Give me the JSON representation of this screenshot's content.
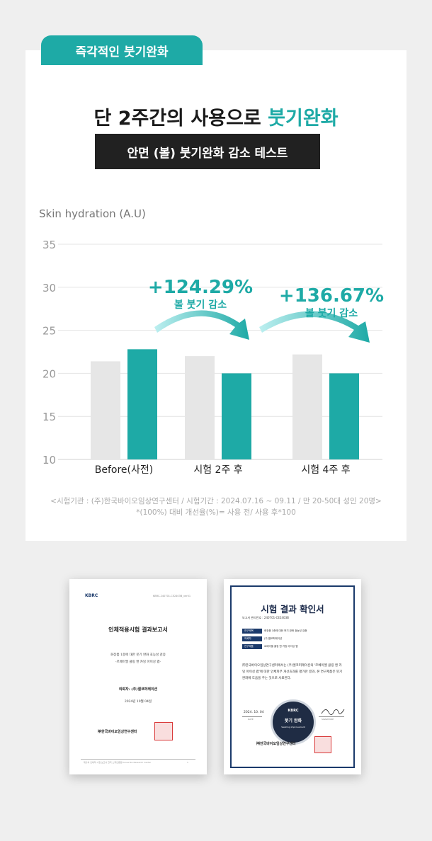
{
  "badge": "즉각적인 붓기완화",
  "headline": {
    "prefix": "단 2주간의 사용으로 ",
    "accent": "붓기완화"
  },
  "subtitle": "안면 (볼) 붓기완화 감소 테스트",
  "chart_data": {
    "type": "bar",
    "ylabel": "Skin  hydration (A.U)",
    "ylim": [
      10,
      35
    ],
    "yticks": [
      "35",
      "30",
      "25",
      "20",
      "15",
      "10"
    ],
    "categories": [
      "Before(사전)",
      "시험 2주 후",
      "시험 4주 후"
    ],
    "series": [
      {
        "color": "#e6e6e6",
        "values": [
          21.4,
          22.0,
          22.2
        ]
      },
      {
        "color": "#1eaaa6",
        "values": [
          22.8,
          20.0,
          20.0
        ]
      }
    ],
    "annotations": [
      {
        "value": "+124.29%",
        "label": "볼 붓기 감소"
      },
      {
        "value": "+136.67%",
        "label": "볼 붓기 감소"
      }
    ],
    "grid": true
  },
  "notes": [
    "<시험기관 : (주)한국바이오임상연구센터  / 시험기간 : 2024.07.16 ~ 09.11 / 만 20-50대 성인 20명>",
    "*(100%) 대비 개선율(%)= 사용 전/ 사용 후*100"
  ],
  "report1": {
    "logo": "KBRC",
    "ref": "KBRC-240701-CE2403B_ver01",
    "title": "인체적용시험 결과보고서",
    "desc1": "화장품 1종에 대한 붓기 완화 효능성 검증",
    "desc2": "-르베이엘 클링 앤 카밍 아이싱 랩-",
    "client": "의뢰자: (주)엘코퍼레이션",
    "date": "2024년 10월 04일",
    "org": "㈜한국바이오임상연구센터",
    "footer": "재출처 인체적 시험 보고서 한국 노력인증원 Korea Bio Research Center",
    "page": "1"
  },
  "report2": {
    "title": "시험 결과 확인서",
    "number": "보고서 관리번호 : 240701-CE2403B",
    "rows": [
      {
        "k": "연구제목",
        "v": "화장품 1종에 대한 붓기 완화 효능성 검증"
      },
      {
        "k": "의뢰자",
        "v": "(주)엘코퍼레이션"
      },
      {
        "k": "연구제품",
        "v": "르베이엘 클링 앤 카밍 아이싱 랩"
      }
    ],
    "body": "㈜한국바이오임상연구센터에서는 (주)엘코퍼레이션의 '르베이엘 클링 앤 카밍 아이싱 랩'에 대한 인체피부 개선효과를 평가한 결과, 본 연구제품은 붓기 완화에 도움을 주는 것으로 사료된다.",
    "date": "2024. 10. 04",
    "date_label": "DATE",
    "sign_label": "SIGNATURE",
    "seal_top": "KBRC",
    "seal_mid": "붓기 완화",
    "seal_low": "Swelling improvement",
    "org": "㈜한국바이오임상연구센터"
  }
}
